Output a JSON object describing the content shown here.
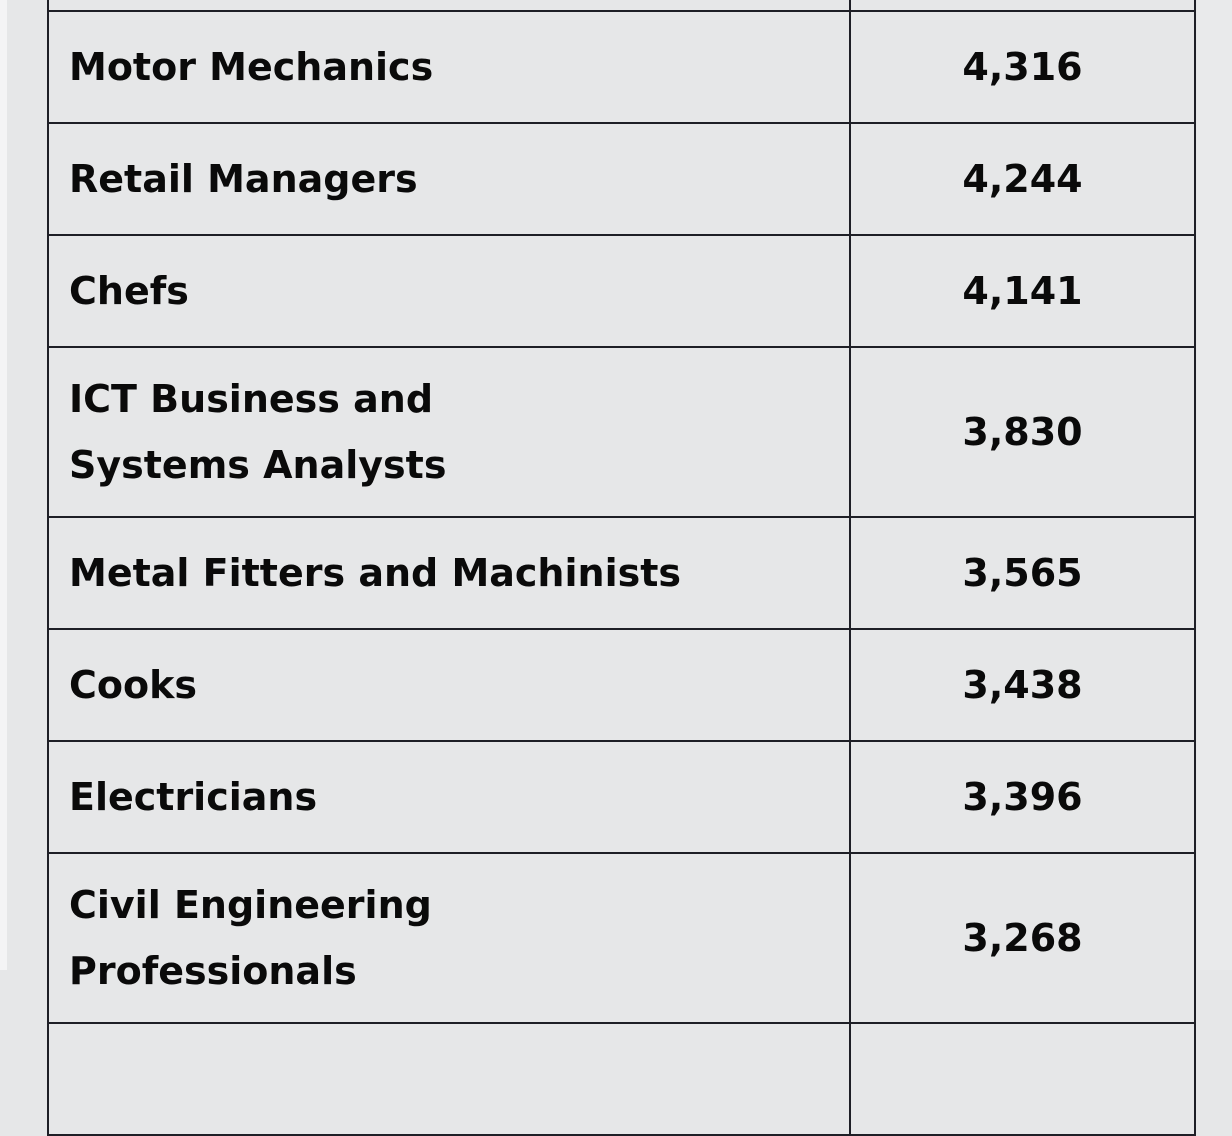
{
  "table": {
    "rows": [
      {
        "occupation": "",
        "count": ""
      },
      {
        "occupation": "Motor Mechanics",
        "count": "4,316"
      },
      {
        "occupation": "Retail Managers",
        "count": "4,244"
      },
      {
        "occupation": "Chefs",
        "count": "4,141"
      },
      {
        "occupation": "ICT Business and Systems Analysts",
        "count": "3,830"
      },
      {
        "occupation": "Metal Fitters and Machinists",
        "count": "3,565"
      },
      {
        "occupation": "Cooks",
        "count": "3,438"
      },
      {
        "occupation": "Electricians",
        "count": "3,396"
      },
      {
        "occupation": "Civil Engineering Professionals",
        "count": "3,268"
      },
      {
        "occupation": "",
        "count": ""
      }
    ]
  }
}
